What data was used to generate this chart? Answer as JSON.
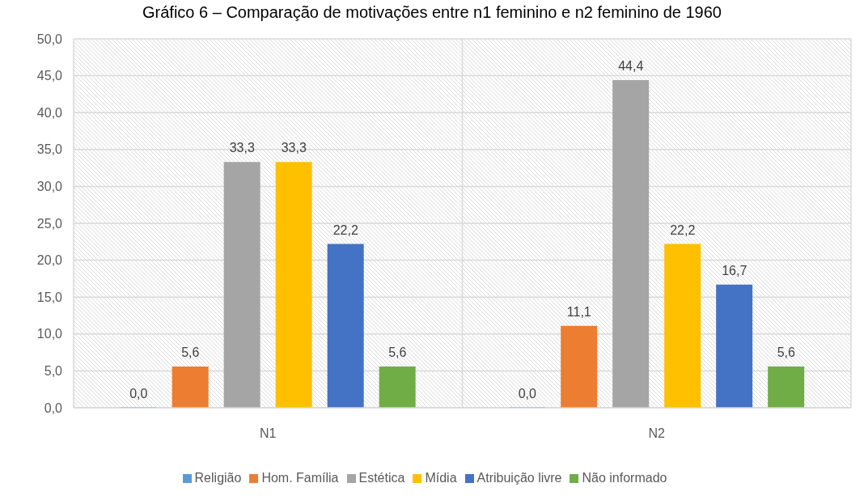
{
  "chart_data": {
    "type": "bar",
    "title": "Gráfico 6 – Comparação de motivações entre n1 feminino e n2 feminino de 1960",
    "categories": [
      "N1",
      "N2"
    ],
    "series": [
      {
        "name": "Religião",
        "color": "#5b9bd5",
        "values": [
          0.0,
          0.0
        ],
        "value_labels": [
          "0,0",
          "0,0"
        ]
      },
      {
        "name": "Hom. Família",
        "color": "#ed7d31",
        "values": [
          5.6,
          11.1
        ],
        "value_labels": [
          "5,6",
          "11,1"
        ]
      },
      {
        "name": "Estética",
        "color": "#a5a5a5",
        "values": [
          33.3,
          44.4
        ],
        "value_labels": [
          "33,3",
          "44,4"
        ]
      },
      {
        "name": "Mídia",
        "color": "#ffc000",
        "values": [
          33.3,
          22.2
        ],
        "value_labels": [
          "33,3",
          "22,2"
        ]
      },
      {
        "name": "Atribuição livre",
        "color": "#4472c4",
        "values": [
          22.2,
          16.7
        ],
        "value_labels": [
          "22,2",
          "16,7"
        ]
      },
      {
        "name": "Não informado",
        "color": "#70ad47",
        "values": [
          5.6,
          5.6
        ],
        "value_labels": [
          "5,6",
          "5,6"
        ]
      }
    ],
    "ylim": [
      0,
      50
    ],
    "yticks": [
      {
        "value": 0,
        "label": "0,0"
      },
      {
        "value": 5,
        "label": "5,0"
      },
      {
        "value": 10,
        "label": "10,0"
      },
      {
        "value": 15,
        "label": "15,0"
      },
      {
        "value": 20,
        "label": "20,0"
      },
      {
        "value": 25,
        "label": "25,0"
      },
      {
        "value": 30,
        "label": "30,0"
      },
      {
        "value": 35,
        "label": "35,0"
      },
      {
        "value": 40,
        "label": "40,0"
      },
      {
        "value": 45,
        "label": "45,0"
      },
      {
        "value": 50,
        "label": "50,0"
      }
    ],
    "grid": true,
    "legend": "bottom"
  }
}
